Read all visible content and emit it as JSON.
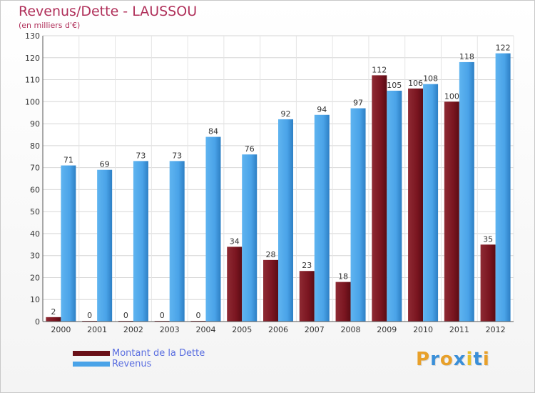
{
  "chart_data": {
    "type": "bar",
    "title": "Revenus/Dette - LAUSSOU",
    "subtitle": "(en milliers d'€)",
    "categories": [
      "2000",
      "2001",
      "2002",
      "2003",
      "2004",
      "2005",
      "2006",
      "2007",
      "2008",
      "2009",
      "2010",
      "2011",
      "2012"
    ],
    "series": [
      {
        "name": "Montant de la Dette",
        "color": "#7a1520",
        "values": [
          2,
          0,
          0,
          0,
          0,
          34,
          28,
          23,
          18,
          112,
          106,
          100,
          35
        ]
      },
      {
        "name": "Revenus",
        "color": "#4aa3e8",
        "values": [
          71,
          69,
          73,
          73,
          84,
          76,
          92,
          94,
          97,
          105,
          108,
          118,
          122
        ]
      }
    ],
    "ylim": [
      0,
      130
    ],
    "yticks": [
      0,
      10,
      20,
      30,
      40,
      50,
      60,
      70,
      80,
      90,
      100,
      110,
      120,
      130
    ],
    "grid": true,
    "legend": "bottom-left"
  },
  "logo": {
    "text": "Proxiti",
    "letters": [
      "P",
      "r",
      "o",
      "x",
      "i",
      "t",
      "i"
    ],
    "colors": [
      "#e8a02a",
      "#3a8fd8",
      "#e8a02a",
      "#3a8fd8",
      "#e8c02a",
      "#3a8fd8",
      "#e8a02a"
    ]
  }
}
